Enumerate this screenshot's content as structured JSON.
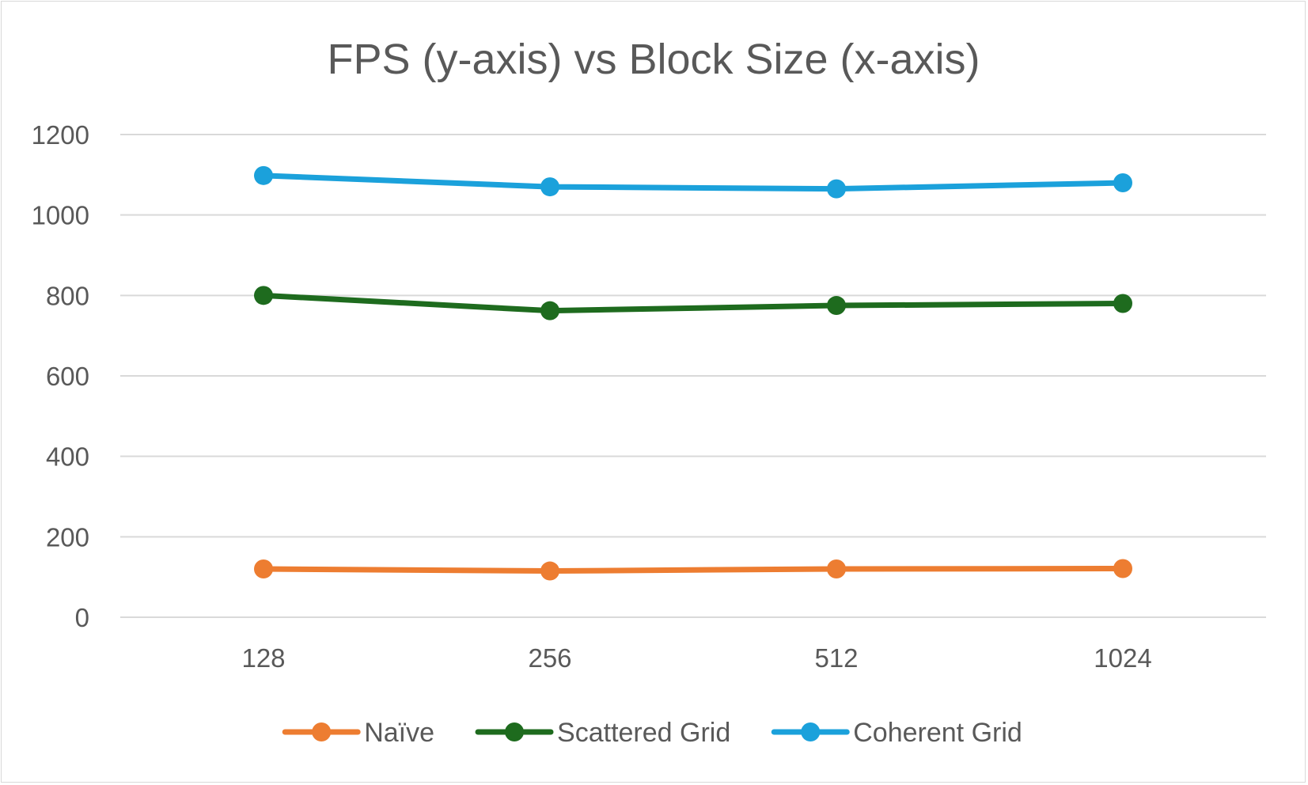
{
  "chart_data": {
    "type": "line",
    "title": "FPS (y-axis) vs Block Size (x-axis)",
    "xlabel": "",
    "ylabel": "",
    "categories": [
      "128",
      "256",
      "512",
      "1024"
    ],
    "y_ticks": [
      "0",
      "200",
      "400",
      "600",
      "800",
      "1000",
      "1200"
    ],
    "ylim": [
      0,
      1200
    ],
    "grid": true,
    "legend_position": "bottom",
    "series": [
      {
        "name": "Naïve",
        "color": "#ed7d31",
        "values": [
          120,
          115,
          120,
          121
        ]
      },
      {
        "name": "Scattered Grid",
        "color": "#1e6b1e",
        "values": [
          800,
          762,
          775,
          780
        ]
      },
      {
        "name": "Coherent Grid",
        "color": "#1ba1db",
        "values": [
          1098,
          1070,
          1065,
          1080
        ]
      }
    ]
  }
}
